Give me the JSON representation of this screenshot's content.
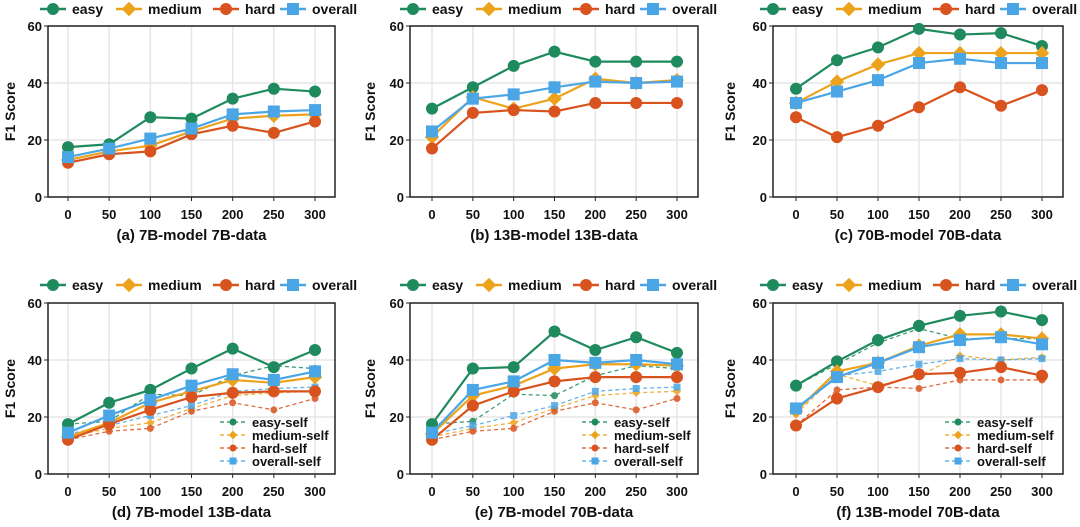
{
  "chart_data": [
    {
      "type": "line",
      "title": "(a) 7B-model 7B-data",
      "ylabel": "F1 Score",
      "xlabel": "",
      "x": [
        0,
        50,
        100,
        150,
        200,
        250,
        300
      ],
      "ylim": [
        0,
        60
      ],
      "yticks": [
        0,
        20,
        40,
        60
      ],
      "grid": true,
      "legend": "top",
      "series": [
        {
          "name": "easy",
          "values": [
            17.5,
            18.5,
            28,
            27.5,
            34.5,
            38,
            37
          ]
        },
        {
          "name": "medium",
          "values": [
            13,
            16,
            18,
            23,
            27.5,
            28.5,
            29
          ]
        },
        {
          "name": "hard",
          "values": [
            12,
            15,
            16,
            22,
            25,
            22.5,
            26.5
          ]
        },
        {
          "name": "overall",
          "values": [
            14,
            17,
            20.5,
            24,
            29,
            30,
            30.5
          ]
        }
      ]
    },
    {
      "type": "line",
      "title": "(b) 13B-model 13B-data",
      "ylabel": "F1 Score",
      "xlabel": "",
      "x": [
        0,
        50,
        100,
        150,
        200,
        250,
        300
      ],
      "ylim": [
        0,
        60
      ],
      "yticks": [
        0,
        20,
        40,
        60
      ],
      "grid": true,
      "legend": "top",
      "series": [
        {
          "name": "easy",
          "values": [
            31,
            38.5,
            46,
            51,
            47.5,
            47.5,
            47.5
          ]
        },
        {
          "name": "medium",
          "values": [
            21,
            35,
            31,
            34.5,
            41.5,
            40,
            41
          ]
        },
        {
          "name": "hard",
          "values": [
            17,
            29.5,
            30.5,
            30,
            33,
            33,
            33
          ]
        },
        {
          "name": "overall",
          "values": [
            23,
            34.5,
            36,
            38.5,
            40.5,
            40,
            40.5
          ]
        }
      ]
    },
    {
      "type": "line",
      "title": "(c) 70B-model 70B-data",
      "ylabel": "F1 Score",
      "xlabel": "",
      "x": [
        0,
        50,
        100,
        150,
        200,
        250,
        300
      ],
      "ylim": [
        0,
        60
      ],
      "yticks": [
        0,
        20,
        40,
        60
      ],
      "grid": true,
      "legend": "top",
      "series": [
        {
          "name": "easy",
          "values": [
            38,
            48,
            52.5,
            59,
            57,
            57.5,
            53
          ]
        },
        {
          "name": "medium",
          "values": [
            33,
            40.5,
            46.5,
            50.5,
            50.5,
            50.5,
            50.5
          ]
        },
        {
          "name": "hard",
          "values": [
            28,
            21,
            25,
            31.5,
            38.5,
            32,
            37.5
          ]
        },
        {
          "name": "overall",
          "values": [
            33,
            37,
            41,
            47,
            48.5,
            47,
            47
          ]
        }
      ]
    },
    {
      "type": "line",
      "title": "(d) 7B-model 13B-data",
      "ylabel": "F1 Score",
      "xlabel": "",
      "x": [
        0,
        50,
        100,
        150,
        200,
        250,
        300
      ],
      "ylim": [
        0,
        60
      ],
      "yticks": [
        0,
        20,
        40,
        60
      ],
      "grid": true,
      "legend": "top",
      "series": [
        {
          "name": "easy",
          "values": [
            17.5,
            25,
            29.5,
            37,
            44,
            37.5,
            43.5
          ]
        },
        {
          "name": "medium",
          "values": [
            13,
            18,
            25,
            29,
            33,
            32,
            34
          ]
        },
        {
          "name": "hard",
          "values": [
            12,
            17.5,
            22.5,
            27,
            28.5,
            29,
            29
          ]
        },
        {
          "name": "overall",
          "values": [
            14.5,
            20.5,
            26,
            31,
            35,
            33,
            36
          ]
        },
        {
          "name": "easy-self",
          "values": [
            17.5,
            18.5,
            28,
            27.5,
            34.5,
            38,
            37
          ]
        },
        {
          "name": "medium-self",
          "values": [
            13,
            16,
            18,
            23,
            27.5,
            28.5,
            29
          ]
        },
        {
          "name": "hard-self",
          "values": [
            12,
            15,
            16,
            22,
            25,
            22.5,
            26.5
          ]
        },
        {
          "name": "overall-self",
          "values": [
            14,
            17,
            20.5,
            24,
            29,
            30,
            30.5
          ]
        }
      ]
    },
    {
      "type": "line",
      "title": "(e) 7B-model 70B-data",
      "ylabel": "F1 Score",
      "xlabel": "",
      "x": [
        0,
        50,
        100,
        150,
        200,
        250,
        300
      ],
      "ylim": [
        0,
        60
      ],
      "yticks": [
        0,
        20,
        40,
        60
      ],
      "grid": true,
      "legend": "top",
      "series": [
        {
          "name": "easy",
          "values": [
            17.5,
            37,
            37.5,
            50,
            43.5,
            48,
            42.5
          ]
        },
        {
          "name": "medium",
          "values": [
            14,
            27.5,
            31,
            37,
            38.5,
            38.5,
            38
          ]
        },
        {
          "name": "hard",
          "values": [
            12,
            24,
            29,
            32.5,
            34,
            34,
            34
          ]
        },
        {
          "name": "overall",
          "values": [
            14.5,
            29.5,
            32.5,
            40,
            39,
            40,
            38.5
          ]
        },
        {
          "name": "easy-self",
          "values": [
            17.5,
            18.5,
            28,
            27.5,
            34.5,
            38,
            37
          ]
        },
        {
          "name": "medium-self",
          "values": [
            13,
            16,
            18,
            23,
            27.5,
            28.5,
            29
          ]
        },
        {
          "name": "hard-self",
          "values": [
            12,
            15,
            16,
            22,
            25,
            22.5,
            26.5
          ]
        },
        {
          "name": "overall-self",
          "values": [
            14,
            17,
            20.5,
            24,
            29,
            30,
            30.5
          ]
        }
      ]
    },
    {
      "type": "line",
      "title": "(f) 13B-model 70B-data",
      "ylabel": "F1 Score",
      "xlabel": "",
      "x": [
        0,
        50,
        100,
        150,
        200,
        250,
        300
      ],
      "ylim": [
        0,
        60
      ],
      "yticks": [
        0,
        20,
        40,
        60
      ],
      "grid": true,
      "legend": "top",
      "series": [
        {
          "name": "easy",
          "values": [
            31,
            39.5,
            47,
            52,
            55.5,
            57,
            54
          ]
        },
        {
          "name": "medium",
          "values": [
            22,
            36,
            39,
            45,
            49,
            49,
            47.5
          ]
        },
        {
          "name": "hard",
          "values": [
            17,
            26.5,
            30.5,
            35,
            35.5,
            37.5,
            34.5
          ]
        },
        {
          "name": "overall",
          "values": [
            23,
            34,
            39,
            44.5,
            47,
            48,
            45.5
          ]
        },
        {
          "name": "easy-self",
          "values": [
            31,
            38.5,
            46,
            51,
            47.5,
            47.5,
            47.5
          ]
        },
        {
          "name": "medium-self",
          "values": [
            21,
            35,
            31,
            34.5,
            41.5,
            40,
            41
          ]
        },
        {
          "name": "hard-self",
          "values": [
            17,
            29.5,
            30.5,
            30,
            33,
            33,
            33
          ]
        },
        {
          "name": "overall-self",
          "values": [
            23,
            34.5,
            36,
            38.5,
            40.5,
            40,
            40.5
          ]
        }
      ]
    }
  ],
  "colors": {
    "easy": "#1f8a5e",
    "medium": "#eda21c",
    "hard": "#d9531e",
    "overall": "#4ba6e6"
  },
  "markers": {
    "easy": "circle",
    "medium": "diamond",
    "hard": "circle",
    "overall": "square"
  }
}
